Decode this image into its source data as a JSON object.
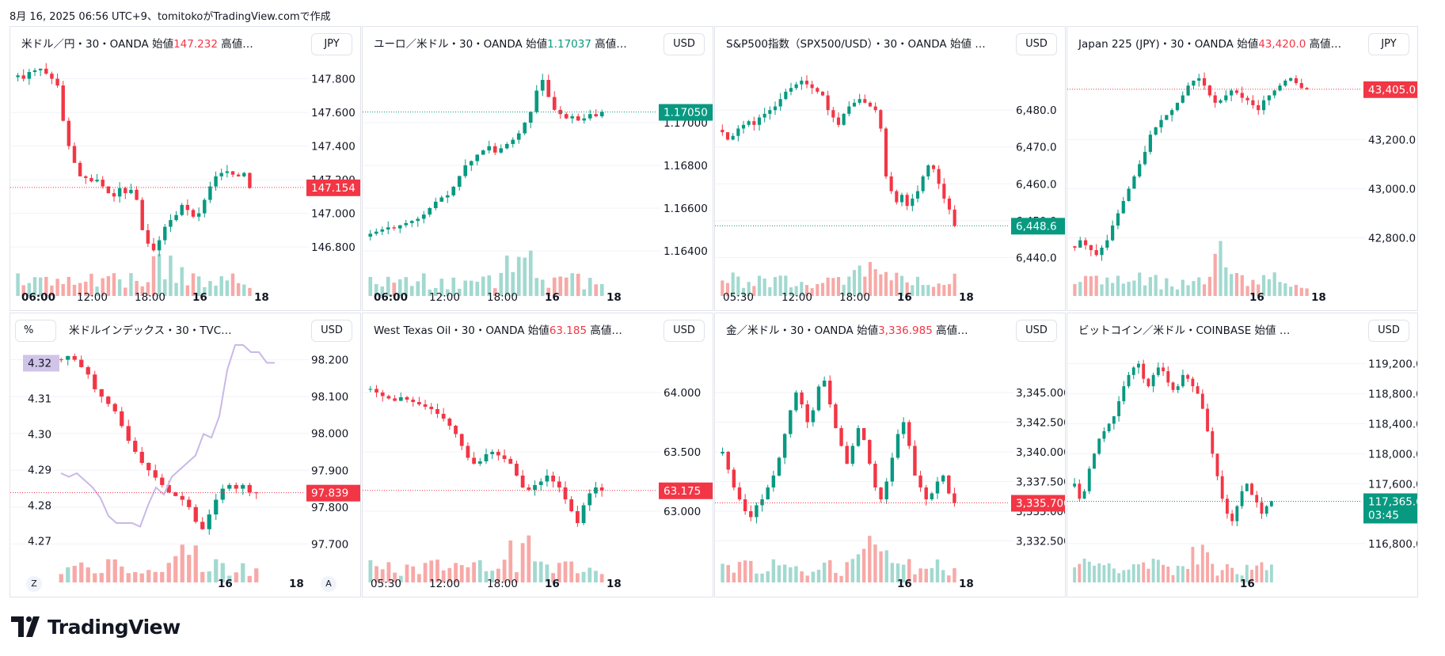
{
  "header": {
    "text": "8月 16, 2025 06:56 UTC+9、tomitokoがTradingView.comで作成"
  },
  "colors": {
    "up": "#089981",
    "down": "#f23645",
    "up_vol": "#a2d9d0",
    "down_vol": "#f7a9a7",
    "index_line": "#c9b8e8"
  },
  "logo": {
    "text": "TradingView",
    "icon": "tradingview-logo-icon"
  },
  "panels": [
    {
      "title": {
        "name": "米ドル／円・30・OANDA",
        "open_label": "始値",
        "open_value": "147.232",
        "open_dir": "down",
        "rest": "高値…"
      },
      "currency": "JPY",
      "y_ticks": [
        "147.800",
        "147.600",
        "147.400",
        "147.200",
        "147.000",
        "146.800"
      ],
      "x_ticks": [
        {
          "label": "06:00",
          "bold": true
        },
        {
          "label": "12:00",
          "bold": false
        },
        {
          "label": "18:00",
          "bold": false
        },
        {
          "label": "16",
          "bold": true
        },
        {
          "label": "18",
          "bold": true
        }
      ],
      "price_label": {
        "text": "147.154",
        "color": "#f23645"
      },
      "chart_data": {
        "type": "candlestick",
        "ylim": [
          146.65,
          147.92
        ],
        "path": [
          147.82,
          147.8,
          147.84,
          147.85,
          147.86,
          147.83,
          147.8,
          147.76,
          147.55,
          147.4,
          147.3,
          147.22,
          147.21,
          147.19,
          147.2,
          147.16,
          147.12,
          147.1,
          147.15,
          147.12,
          147.14,
          147.08,
          146.9,
          146.82,
          146.78,
          146.84,
          146.92,
          146.96,
          146.99,
          147.05,
          147.02,
          146.98,
          147.0,
          147.08,
          147.16,
          147.22,
          147.24,
          147.25,
          147.23,
          147.22,
          147.24,
          147.15
        ],
        "last": 147.154
      }
    },
    {
      "title": {
        "name": "ユーロ／米ドル・30・OANDA",
        "open_label": "始値",
        "open_value": "1.17037",
        "open_dir": "up",
        "rest": "高値…"
      },
      "currency": "USD",
      "y_ticks": [
        "1.17000",
        "1.16800",
        "1.16600",
        "1.16400"
      ],
      "x_ticks": [
        {
          "label": "06:00",
          "bold": true
        },
        {
          "label": "12:00",
          "bold": false
        },
        {
          "label": "18:00",
          "bold": false
        },
        {
          "label": "16",
          "bold": true
        },
        {
          "label": "18",
          "bold": true
        }
      ],
      "price_label": {
        "text": "1.17050",
        "color": "#089981"
      },
      "chart_data": {
        "type": "candlestick",
        "ylim": [
          1.163,
          1.173
        ],
        "path": [
          1.1648,
          1.1649,
          1.165,
          1.1651,
          1.16505,
          1.1652,
          1.1653,
          1.1654,
          1.1655,
          1.1657,
          1.166,
          1.1663,
          1.1665,
          1.1666,
          1.167,
          1.1675,
          1.168,
          1.1682,
          1.1685,
          1.1687,
          1.1689,
          1.1686,
          1.1688,
          1.169,
          1.1692,
          1.1695,
          1.17,
          1.1705,
          1.1715,
          1.172,
          1.1712,
          1.1706,
          1.1704,
          1.1702,
          1.1703,
          1.1701,
          1.1702,
          1.1704,
          1.1703,
          1.1705
        ],
        "last": 1.1705
      }
    },
    {
      "title": {
        "name": "S&P500指数（SPX500/USD）・30・OANDA",
        "open_label": "始値",
        "open_value": "",
        "open_dir": "up",
        "rest": "…"
      },
      "currency": "USD",
      "y_ticks": [
        "6,480.0",
        "6,470.0",
        "6,460.0",
        "6,450.0",
        "6,440.0"
      ],
      "x_ticks": [
        {
          "label": "05:30",
          "bold": false
        },
        {
          "label": "12:00",
          "bold": false
        },
        {
          "label": "18:00",
          "bold": false
        },
        {
          "label": "16",
          "bold": true
        },
        {
          "label": "18",
          "bold": true
        }
      ],
      "price_label": {
        "text": "6,448.6",
        "color": "#089981"
      },
      "chart_data": {
        "type": "candlestick",
        "ylim": [
          6436,
          6494
        ],
        "path": [
          6474,
          6472,
          6473,
          6475,
          6476,
          6477,
          6476,
          6478,
          6479,
          6480,
          6481,
          6483,
          6485,
          6486,
          6487,
          6488,
          6487,
          6486,
          6485,
          6484,
          6480,
          6478,
          6476,
          6479,
          6481,
          6482,
          6483,
          6482,
          6481,
          6480,
          6475,
          6462,
          6458,
          6455,
          6457,
          6454,
          6456,
          6458,
          6462,
          6465,
          6464,
          6460,
          6456,
          6453,
          6448.6
        ],
        "last": 6448.6
      }
    },
    {
      "title": {
        "name": "Japan 225 (JPY)・30・OANDA",
        "open_label": "始値",
        "open_value": "43,420.0",
        "open_dir": "down",
        "rest": "高値…"
      },
      "currency": "JPY",
      "y_ticks": [
        "43,200.0",
        "43,000.0",
        "42,800.0"
      ],
      "x_ticks": [
        {
          "label": "16",
          "bold": true
        },
        {
          "label": "18",
          "bold": true
        }
      ],
      "price_label": {
        "text": "43,405.0",
        "color": "#f23645"
      },
      "chart_data": {
        "type": "candlestick",
        "ylim": [
          42660,
          43530
        ],
        "path": [
          42760,
          42790,
          42770,
          42750,
          42730,
          42760,
          42790,
          42850,
          42900,
          42950,
          43000,
          43050,
          43100,
          43150,
          43220,
          43250,
          43280,
          43300,
          43320,
          43350,
          43380,
          43420,
          43440,
          43450,
          43420,
          43380,
          43350,
          43360,
          43380,
          43400,
          43390,
          43370,
          43360,
          43340,
          43320,
          43360,
          43380,
          43400,
          43420,
          43440,
          43450,
          43430,
          43410,
          43405
        ],
        "last": 43405.0
      }
    },
    {
      "title": {
        "name": "米ドルインデックス・30・TVC…",
        "open_label": "",
        "open_value": "",
        "open_dir": "down",
        "rest": ""
      },
      "currency": "USD",
      "pct_button": "%",
      "left_ticks": [
        "4.31",
        "4.30",
        "4.29",
        "4.28",
        "4.27"
      ],
      "left_label": {
        "text": "4.32",
        "color": "#d1c4e9"
      },
      "y_ticks": [
        "98.200",
        "98.100",
        "98.000",
        "97.900",
        "97.800",
        "97.700"
      ],
      "x_ticks": [
        {
          "label": "16",
          "bold": true
        },
        {
          "label": "18",
          "bold": true
        }
      ],
      "price_label": {
        "text": "97.839",
        "color": "#f23645"
      },
      "round_left": "Z",
      "round_right": "A",
      "chart_data": {
        "type": "candlestick",
        "ylim": [
          97.66,
          98.24
        ],
        "path": [
          98.2,
          98.21,
          98.2,
          98.18,
          98.16,
          98.12,
          98.1,
          98.08,
          98.06,
          98.02,
          97.98,
          97.95,
          97.92,
          97.9,
          97.88,
          97.86,
          97.84,
          97.83,
          97.82,
          97.8,
          97.76,
          97.74,
          97.78,
          97.82,
          97.85,
          97.86,
          97.85,
          97.86,
          97.84,
          97.839
        ],
        "last": 97.839,
        "yield_series": {
          "name": "",
          "ylim": [
            4.265,
            4.325
          ],
          "values": [
            4.289,
            4.288,
            4.289,
            4.287,
            4.285,
            4.282,
            4.277,
            4.275,
            4.275,
            4.275,
            4.274,
            4.28,
            4.285,
            4.283,
            4.288,
            4.29,
            4.292,
            4.294,
            4.3,
            4.299,
            4.305,
            4.318,
            4.325,
            4.325,
            4.323,
            4.323,
            4.32,
            4.32
          ]
        }
      }
    },
    {
      "title": {
        "name": "West Texas Oil・30・OANDA",
        "open_label": "始値",
        "open_value": "63.185",
        "open_dir": "down",
        "rest": "高値…"
      },
      "currency": "USD",
      "y_ticks": [
        "64.000",
        "63.500",
        "63.000"
      ],
      "x_ticks": [
        {
          "label": "05:30",
          "bold": false
        },
        {
          "label": "12:00",
          "bold": false
        },
        {
          "label": "18:00",
          "bold": false
        },
        {
          "label": "16",
          "bold": true
        },
        {
          "label": "18",
          "bold": true
        }
      ],
      "price_label": {
        "text": "63.175",
        "color": "#f23645"
      },
      "chart_data": {
        "type": "candlestick",
        "ylim": [
          62.6,
          64.4
        ],
        "path": [
          64.03,
          64.0,
          63.97,
          63.95,
          63.93,
          63.96,
          63.94,
          63.92,
          63.9,
          63.88,
          63.86,
          63.82,
          63.78,
          63.72,
          63.65,
          63.55,
          63.45,
          63.4,
          63.42,
          63.48,
          63.5,
          63.47,
          63.44,
          63.4,
          63.3,
          63.2,
          63.18,
          63.22,
          63.25,
          63.3,
          63.25,
          63.2,
          63.1,
          63.0,
          62.9,
          63.05,
          63.15,
          63.2,
          63.175
        ],
        "last": 63.175
      }
    },
    {
      "title": {
        "name": "金／米ドル・30・OANDA",
        "open_label": "始値",
        "open_value": "3,336.985",
        "open_dir": "down",
        "rest": "高値…"
      },
      "currency": "USD",
      "y_ticks": [
        "3,345.000",
        "3,342.500",
        "3,340.000",
        "3,337.500",
        "3,335.000",
        "3,332.500"
      ],
      "x_ticks": [
        {
          "label": "16",
          "bold": true
        },
        {
          "label": "18",
          "bold": true
        }
      ],
      "price_label": {
        "text": "3,335.700",
        "color": "#f23645"
      },
      "chart_data": {
        "type": "candlestick",
        "ylim": [
          3331.0,
          3349.0
        ],
        "path": [
          3340.0,
          3338.5,
          3337.0,
          3336.0,
          3335.0,
          3334.5,
          3335.5,
          3336.0,
          3337.0,
          3338.0,
          3339.5,
          3341.5,
          3343.5,
          3345.0,
          3344.0,
          3342.5,
          3343.5,
          3345.5,
          3346.0,
          3344.0,
          3342.0,
          3340.5,
          3339.0,
          3340.5,
          3342.0,
          3341.0,
          3339.0,
          3337.0,
          3336.0,
          3337.5,
          3339.5,
          3341.5,
          3342.5,
          3340.5,
          3338.0,
          3337.0,
          3336.0,
          3336.5,
          3337.5,
          3338.0,
          3336.5,
          3335.7
        ],
        "last": 3335.7
      }
    },
    {
      "title": {
        "name": "ビットコイン／米ドル・COINBASE",
        "open_label": "始値",
        "open_value": "",
        "open_dir": "down",
        "rest": "…"
      },
      "currency": "USD",
      "y_ticks": [
        "119,200.000",
        "118,800.000",
        "118,400.000",
        "118,000.000",
        "117,600.000",
        "116,800.000"
      ],
      "x_ticks": [
        {
          "label": "16",
          "bold": true
        }
      ],
      "price_label": {
        "text": "117,365.60",
        "subtext": "03:45",
        "color": "#089981"
      },
      "chart_data": {
        "type": "candlestick",
        "ylim": [
          116600,
          119450
        ],
        "path": [
          117600,
          117400,
          117500,
          117800,
          118000,
          118200,
          118300,
          118400,
          118500,
          118700,
          118900,
          119050,
          119150,
          119200,
          119000,
          118900,
          119050,
          119150,
          119100,
          118950,
          118850,
          118900,
          119050,
          119000,
          118900,
          118800,
          118600,
          118300,
          118000,
          117700,
          117400,
          117200,
          117100,
          117300,
          117500,
          117600,
          117450,
          117350,
          117200,
          117300,
          117365.6
        ],
        "last": 117365.6
      }
    }
  ]
}
